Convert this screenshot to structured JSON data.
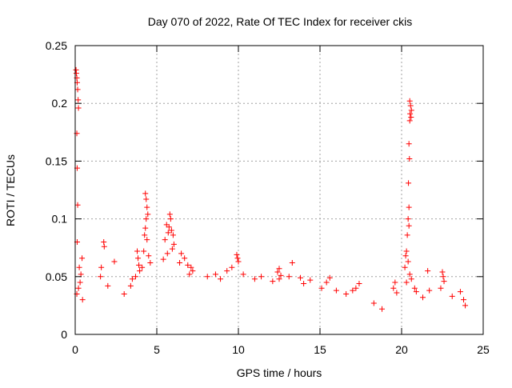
{
  "chart_data": {
    "type": "scatter",
    "title": "Day 070 of 2022, Rate Of TEC Index for receiver ckis",
    "xlabel": "GPS time / hours",
    "ylabel": "ROTI / TECUs",
    "xlim": [
      0,
      25
    ],
    "ylim": [
      0,
      0.25
    ],
    "xticks": [
      "0",
      "5",
      "10",
      "15",
      "20",
      "25"
    ],
    "yticks": [
      "0",
      "0.05",
      "0.1",
      "0.15",
      "0.2",
      "0.25"
    ],
    "grid": true,
    "marker": "+",
    "color": "#ff0000",
    "series": [
      {
        "name": "",
        "points": [
          [
            0.05,
            0.229
          ],
          [
            0.07,
            0.226
          ],
          [
            0.1,
            0.222
          ],
          [
            0.12,
            0.218
          ],
          [
            0.15,
            0.212
          ],
          [
            0.18,
            0.203
          ],
          [
            0.2,
            0.196
          ],
          [
            0.1,
            0.174
          ],
          [
            0.12,
            0.144
          ],
          [
            0.15,
            0.112
          ],
          [
            0.12,
            0.08
          ],
          [
            0.25,
            0.058
          ],
          [
            0.35,
            0.052
          ],
          [
            0.42,
            0.066
          ],
          [
            0.3,
            0.045
          ],
          [
            0.2,
            0.04
          ],
          [
            0.1,
            0.035
          ],
          [
            0.45,
            0.03
          ],
          [
            1.75,
            0.08
          ],
          [
            1.78,
            0.076
          ],
          [
            1.6,
            0.058
          ],
          [
            1.55,
            0.05
          ],
          [
            2.4,
            0.063
          ],
          [
            2.0,
            0.042
          ],
          [
            3.5,
            0.048
          ],
          [
            3.4,
            0.042
          ],
          [
            3.0,
            0.035
          ],
          [
            3.8,
            0.072
          ],
          [
            3.85,
            0.066
          ],
          [
            3.9,
            0.06
          ],
          [
            3.95,
            0.055
          ],
          [
            3.7,
            0.05
          ],
          [
            4.3,
            0.122
          ],
          [
            4.35,
            0.117
          ],
          [
            4.4,
            0.11
          ],
          [
            4.45,
            0.104
          ],
          [
            4.35,
            0.1
          ],
          [
            4.3,
            0.092
          ],
          [
            4.25,
            0.086
          ],
          [
            4.4,
            0.082
          ],
          [
            4.2,
            0.072
          ],
          [
            4.5,
            0.068
          ],
          [
            4.6,
            0.062
          ],
          [
            4.1,
            0.058
          ],
          [
            5.8,
            0.104
          ],
          [
            5.85,
            0.1
          ],
          [
            5.6,
            0.095
          ],
          [
            5.75,
            0.093
          ],
          [
            5.9,
            0.09
          ],
          [
            5.7,
            0.088
          ],
          [
            6.0,
            0.086
          ],
          [
            5.5,
            0.082
          ],
          [
            6.05,
            0.078
          ],
          [
            5.95,
            0.074
          ],
          [
            5.65,
            0.07
          ],
          [
            5.4,
            0.065
          ],
          [
            6.5,
            0.07
          ],
          [
            6.7,
            0.066
          ],
          [
            6.4,
            0.062
          ],
          [
            6.9,
            0.06
          ],
          [
            7.1,
            0.058
          ],
          [
            7.2,
            0.055
          ],
          [
            7.0,
            0.052
          ],
          [
            8.1,
            0.05
          ],
          [
            8.6,
            0.052
          ],
          [
            8.9,
            0.048
          ],
          [
            9.9,
            0.069
          ],
          [
            9.95,
            0.066
          ],
          [
            10.0,
            0.063
          ],
          [
            9.6,
            0.058
          ],
          [
            9.3,
            0.055
          ],
          [
            10.3,
            0.052
          ],
          [
            11.4,
            0.05
          ],
          [
            11.0,
            0.048
          ],
          [
            12.1,
            0.046
          ],
          [
            12.5,
            0.057
          ],
          [
            12.4,
            0.054
          ],
          [
            12.6,
            0.051
          ],
          [
            12.5,
            0.048
          ],
          [
            13.3,
            0.062
          ],
          [
            13.1,
            0.05
          ],
          [
            13.8,
            0.049
          ],
          [
            14.0,
            0.044
          ],
          [
            14.4,
            0.047
          ],
          [
            15.6,
            0.049
          ],
          [
            15.4,
            0.045
          ],
          [
            15.1,
            0.04
          ],
          [
            16.0,
            0.038
          ],
          [
            17.0,
            0.038
          ],
          [
            17.4,
            0.044
          ],
          [
            17.2,
            0.04
          ],
          [
            16.6,
            0.035
          ],
          [
            18.3,
            0.027
          ],
          [
            18.8,
            0.022
          ],
          [
            19.6,
            0.045
          ],
          [
            19.5,
            0.04
          ],
          [
            19.7,
            0.036
          ],
          [
            20.5,
            0.202
          ],
          [
            20.55,
            0.198
          ],
          [
            20.6,
            0.194
          ],
          [
            20.52,
            0.191
          ],
          [
            20.58,
            0.188
          ],
          [
            20.5,
            0.185
          ],
          [
            20.45,
            0.165
          ],
          [
            20.48,
            0.152
          ],
          [
            20.42,
            0.131
          ],
          [
            20.45,
            0.11
          ],
          [
            20.4,
            0.1
          ],
          [
            20.45,
            0.094
          ],
          [
            20.35,
            0.086
          ],
          [
            20.3,
            0.072
          ],
          [
            20.25,
            0.068
          ],
          [
            20.4,
            0.063
          ],
          [
            20.2,
            0.058
          ],
          [
            20.5,
            0.052
          ],
          [
            20.6,
            0.048
          ],
          [
            20.3,
            0.045
          ],
          [
            20.8,
            0.04
          ],
          [
            20.9,
            0.037
          ],
          [
            21.6,
            0.055
          ],
          [
            21.7,
            0.038
          ],
          [
            21.3,
            0.032
          ],
          [
            22.5,
            0.054
          ],
          [
            22.55,
            0.05
          ],
          [
            22.6,
            0.046
          ],
          [
            22.4,
            0.04
          ],
          [
            23.1,
            0.033
          ],
          [
            23.6,
            0.037
          ],
          [
            23.8,
            0.03
          ],
          [
            23.9,
            0.025
          ]
        ]
      }
    ]
  }
}
